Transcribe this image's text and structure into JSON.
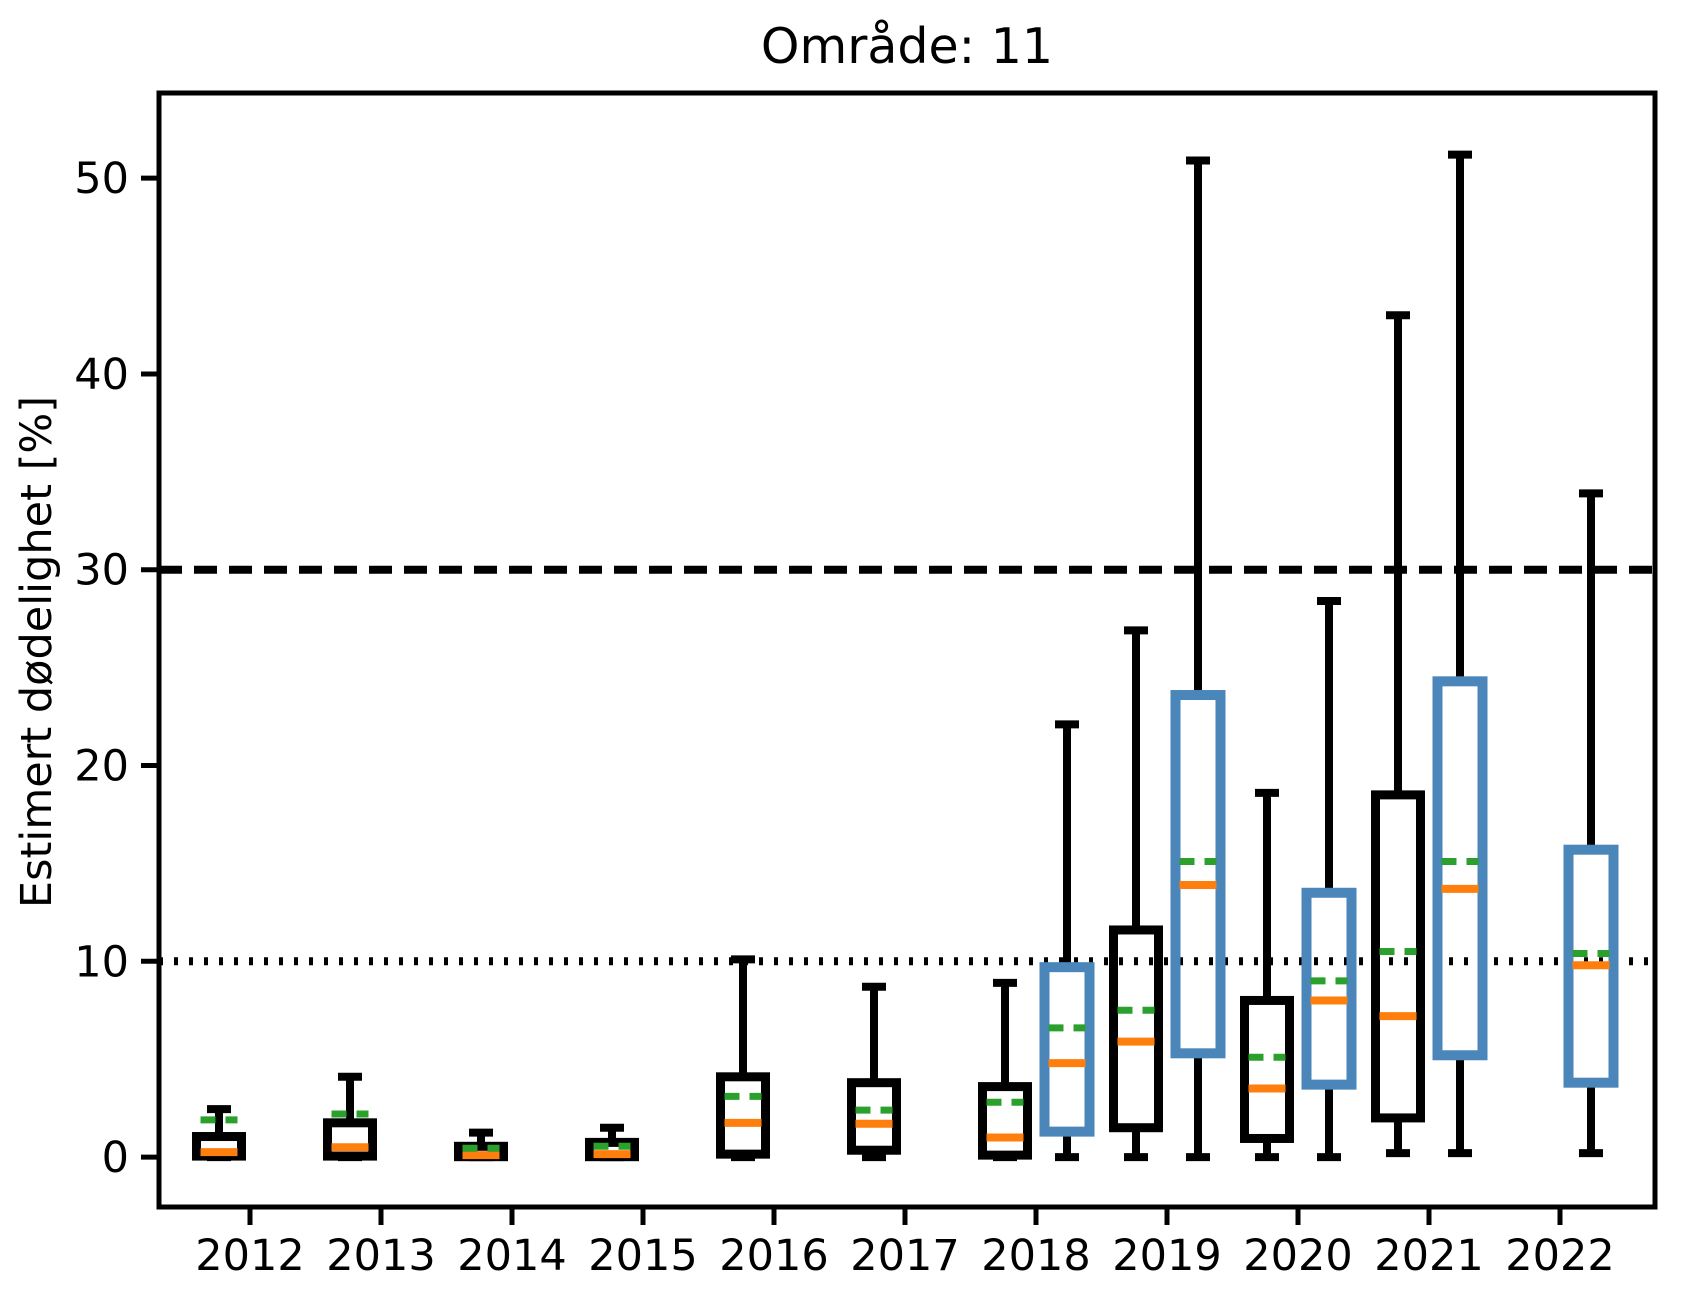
{
  "title": "Område: 11",
  "ylabel": "Estimert dødelighet [%]",
  "colors": {
    "box_black": "#000000",
    "box_blue": "#4A86BA",
    "median": "#FF7F0E",
    "mean": "#2CA02C",
    "reference": "#000000",
    "axis": "#000000"
  },
  "chart_data": {
    "type": "boxplot",
    "title": "Område: 11",
    "xlabel": "",
    "ylabel": "Estimert dødelighet [%]",
    "categories": [
      "2012",
      "2013",
      "2014",
      "2015",
      "2016",
      "2017",
      "2018",
      "2019",
      "2020",
      "2021",
      "2022"
    ],
    "yticks": [
      0,
      10,
      20,
      30,
      40,
      50
    ],
    "ylim": [
      -2.55,
      54.35
    ],
    "grid": false,
    "legend": "none",
    "reference_lines": [
      {
        "y": 30,
        "style": "dashed",
        "color": "#000000"
      },
      {
        "y": 10,
        "style": "dotted",
        "color": "#000000"
      }
    ],
    "series": [
      {
        "name": "black-boxes",
        "color": "#000000",
        "offset": -31,
        "boxes": [
          {
            "year": "2012",
            "whislo": 0,
            "q1": 0.05,
            "med": 0.25,
            "mean": 1.9,
            "q3": 1.05,
            "whishi": 2.45
          },
          {
            "year": "2013",
            "whislo": 0,
            "q1": 0.05,
            "med": 0.5,
            "mean": 2.2,
            "q3": 1.75,
            "whishi": 4.1
          },
          {
            "year": "2014",
            "whislo": 0,
            "q1": 0.02,
            "med": 0.1,
            "mean": 0.45,
            "q3": 0.55,
            "whishi": 1.25
          },
          {
            "year": "2015",
            "whislo": 0,
            "q1": 0.02,
            "med": 0.15,
            "mean": 0.55,
            "q3": 0.75,
            "whishi": 1.5
          },
          {
            "year": "2016",
            "whislo": 0,
            "q1": 0.15,
            "med": 1.75,
            "mean": 3.1,
            "q3": 4.1,
            "whishi": 10.1
          },
          {
            "year": "2017",
            "whislo": 0,
            "q1": 0.35,
            "med": 1.7,
            "mean": 2.4,
            "q3": 3.8,
            "whishi": 8.7
          },
          {
            "year": "2018",
            "whislo": 0,
            "q1": 0.1,
            "med": 1.0,
            "mean": 2.8,
            "q3": 3.6,
            "whishi": 8.9
          },
          {
            "year": "2019",
            "whislo": 0,
            "q1": 1.5,
            "med": 5.9,
            "mean": 7.5,
            "q3": 11.6,
            "whishi": 26.9
          },
          {
            "year": "2020",
            "whislo": 0,
            "q1": 0.95,
            "med": 3.5,
            "mean": 5.1,
            "q3": 8.0,
            "whishi": 18.6
          },
          {
            "year": "2021",
            "whislo": 0.2,
            "q1": 2.0,
            "med": 7.2,
            "mean": 10.5,
            "q3": 18.5,
            "whishi": 43.0
          }
        ]
      },
      {
        "name": "blue-boxes",
        "color": "#4A86BA",
        "offset": 31,
        "boxes": [
          {
            "year": "2018",
            "whislo": 0,
            "q1": 1.3,
            "med": 4.8,
            "mean": 6.6,
            "q3": 9.7,
            "whishi": 22.1
          },
          {
            "year": "2019",
            "whislo": 0,
            "q1": 5.3,
            "med": 13.9,
            "mean": 15.1,
            "q3": 23.6,
            "whishi": 50.9
          },
          {
            "year": "2020",
            "whislo": 0,
            "q1": 3.7,
            "med": 8.0,
            "mean": 9.0,
            "q3": 13.5,
            "whishi": 28.4
          },
          {
            "year": "2021",
            "whislo": 0.2,
            "q1": 5.2,
            "med": 13.7,
            "mean": 15.1,
            "q3": 24.3,
            "whishi": 51.2
          },
          {
            "year": "2022",
            "whislo": 0.2,
            "q1": 3.8,
            "med": 9.8,
            "mean": 10.4,
            "q3": 15.7,
            "whishi": 33.9
          }
        ]
      }
    ]
  }
}
